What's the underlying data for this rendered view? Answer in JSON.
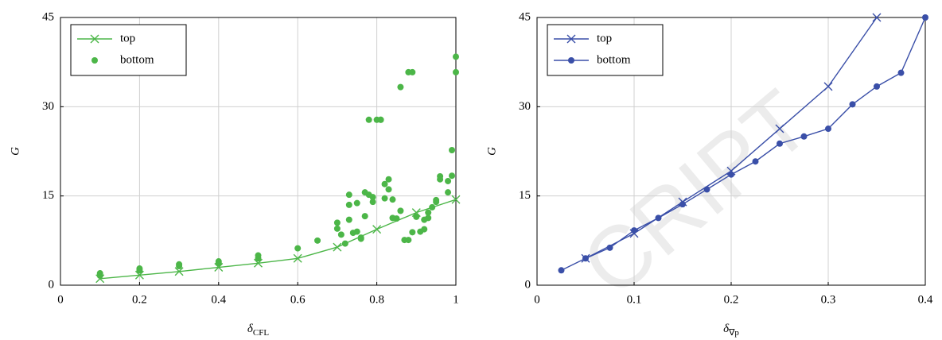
{
  "chart_data": [
    {
      "type": "line",
      "y_label": "G",
      "x_label": "δ",
      "x_label_subscript": "CFL",
      "xlim": [
        0,
        1
      ],
      "ylim": [
        0,
        45
      ],
      "xticks": [
        0,
        0.2,
        0.4,
        0.6,
        0.8,
        1
      ],
      "yticks": [
        0,
        15,
        30,
        45
      ],
      "grid": true,
      "legend": "upper-left",
      "series": [
        {
          "name": "top",
          "color": "#4cb648",
          "marker": "x",
          "line": true,
          "x": [
            0.1,
            0.2,
            0.3,
            0.4,
            0.5,
            0.6,
            0.7,
            0.8,
            0.9,
            1.0
          ],
          "values": [
            1.1,
            1.7,
            2.3,
            3.0,
            3.7,
            4.5,
            6.4,
            9.4,
            12.2,
            14.4
          ]
        },
        {
          "name": "bottom",
          "color": "#4cb648",
          "marker": "circle",
          "line": false,
          "x": [
            0.1,
            0.1,
            0.2,
            0.2,
            0.3,
            0.3,
            0.4,
            0.4,
            0.5,
            0.5,
            0.6,
            0.65,
            0.7,
            0.7,
            0.71,
            0.72,
            0.73,
            0.73,
            0.73,
            0.74,
            0.75,
            0.75,
            0.76,
            0.76,
            0.77,
            0.77,
            0.78,
            0.78,
            0.79,
            0.79,
            0.8,
            0.81,
            0.81,
            0.82,
            0.82,
            0.83,
            0.83,
            0.84,
            0.84,
            0.85,
            0.86,
            0.86,
            0.87,
            0.88,
            0.88,
            0.89,
            0.89,
            0.9,
            0.91,
            0.92,
            0.92,
            0.93,
            0.93,
            0.94,
            0.95,
            0.95,
            0.96,
            0.96,
            0.98,
            0.98,
            0.99,
            0.99,
            1.0,
            1.0
          ],
          "values": [
            2.0,
            1.6,
            2.8,
            2.5,
            3.5,
            3.2,
            4.0,
            3.7,
            5.0,
            4.5,
            6.2,
            7.5,
            10.5,
            9.5,
            8.5,
            7.0,
            11.0,
            13.5,
            15.2,
            8.8,
            13.8,
            9.0,
            8.0,
            7.8,
            11.6,
            15.6,
            15.2,
            27.8,
            14.0,
            14.8,
            27.8,
            27.8,
            27.8,
            17.0,
            14.6,
            16.1,
            17.8,
            14.4,
            11.3,
            11.2,
            12.5,
            33.3,
            7.6,
            7.6,
            35.8,
            35.8,
            8.9,
            11.5,
            9.0,
            9.4,
            11.0,
            11.3,
            12.2,
            13.1,
            14.0,
            14.3,
            17.8,
            18.3,
            15.6,
            17.5,
            18.4,
            22.7,
            35.8,
            38.4
          ]
        }
      ]
    },
    {
      "type": "line",
      "y_label": "G",
      "x_label": "δ",
      "x_label_subscript": "∇p",
      "xlim": [
        0,
        0.4
      ],
      "ylim": [
        0,
        45
      ],
      "xticks": [
        0,
        0.1,
        0.2,
        0.3,
        0.4
      ],
      "yticks": [
        0,
        15,
        30,
        45
      ],
      "grid": true,
      "legend": "upper-left",
      "series": [
        {
          "name": "top",
          "color": "#3a4fa8",
          "marker": "x",
          "line": true,
          "x": [
            0.05,
            0.1,
            0.15,
            0.2,
            0.25,
            0.3,
            0.35
          ],
          "values": [
            4.5,
            8.7,
            14.0,
            19.2,
            26.3,
            33.4,
            45
          ]
        },
        {
          "name": "bottom",
          "color": "#3a4fa8",
          "marker": "circle",
          "line": true,
          "x": [
            0.025,
            0.05,
            0.075,
            0.1,
            0.125,
            0.15,
            0.175,
            0.2,
            0.225,
            0.25,
            0.275,
            0.3,
            0.325,
            0.35,
            0.375,
            0.4
          ],
          "values": [
            2.5,
            4.5,
            6.3,
            9.2,
            11.3,
            13.6,
            16.1,
            18.6,
            20.8,
            23.8,
            25.0,
            26.3,
            30.4,
            33.4,
            35.7,
            45
          ]
        }
      ]
    }
  ],
  "watermark": "CRIPT"
}
